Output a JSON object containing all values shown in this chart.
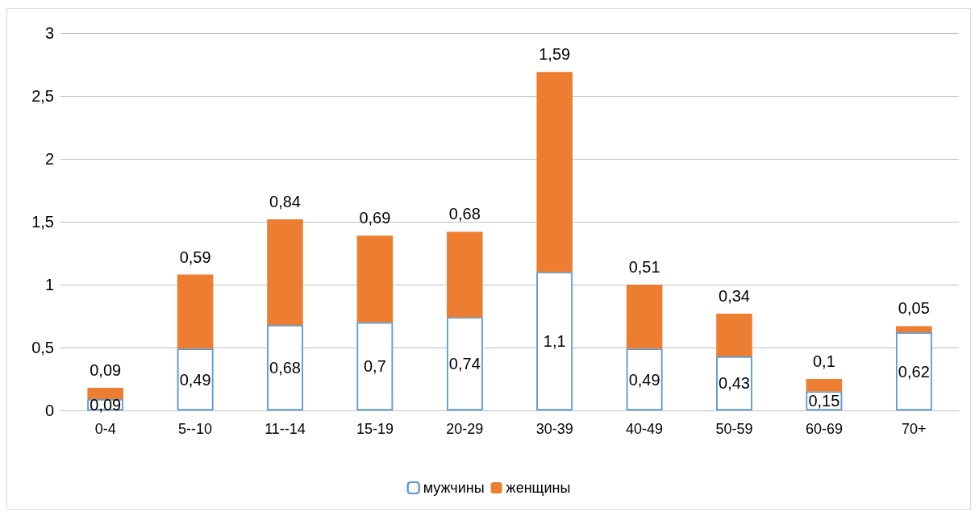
{
  "chart_data": {
    "type": "bar",
    "stacked": true,
    "grid": "y",
    "legend": "bottom",
    "categories": [
      "0-4",
      "5--10",
      "11--14",
      "15-19",
      "20-29",
      "30-39",
      "40-49",
      "50-59",
      "60-69",
      "70+"
    ],
    "series": [
      {
        "name": "мужчины",
        "color": "#5b9bd5",
        "values": [
          0.09,
          0.49,
          0.68,
          0.7,
          0.74,
          1.1,
          0.49,
          0.43,
          0.15,
          0.62
        ],
        "value_labels": [
          "0,09",
          "0,49",
          "0,68",
          "0,7",
          "0,74",
          "1,1",
          "0,49",
          "0,43",
          "0,15",
          "0,62"
        ]
      },
      {
        "name": "женщины",
        "color": "#ed7d31",
        "values": [
          0.09,
          0.59,
          0.84,
          0.69,
          0.68,
          1.59,
          0.51,
          0.34,
          0.1,
          0.05
        ],
        "value_labels": [
          "0,09",
          "0,59",
          "0,84",
          "0,69",
          "0,68",
          "1,59",
          "0,51",
          "0,34",
          "0,1",
          "0,05"
        ]
      }
    ],
    "ylim": [
      0,
      3
    ],
    "yticks": [
      0,
      {
        "value": 0.5,
        "label": "0,5"
      },
      1,
      {
        "value": 1.5,
        "label": "1,5"
      },
      2,
      {
        "value": 2.5,
        "label": "2,5"
      },
      3
    ]
  }
}
